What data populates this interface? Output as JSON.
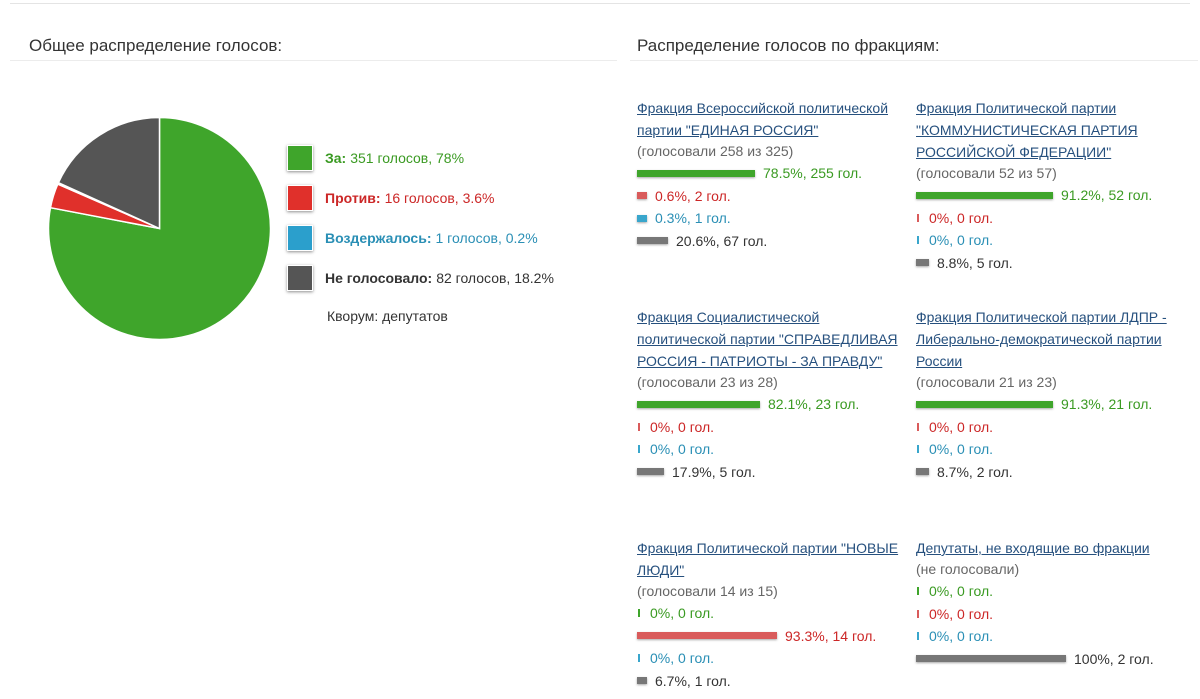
{
  "overall": {
    "title": "Общее распределение голосов:",
    "legend": [
      {
        "key": "for",
        "label": "За:",
        "text": "351 голосов, 78%",
        "color": "#3fa52b"
      },
      {
        "key": "against",
        "label": "Против:",
        "text": "16 голосов, 3.6%",
        "color": "#e0302b"
      },
      {
        "key": "abst",
        "label": "Воздержалось:",
        "text": "1 голосов, 0.2%",
        "color": "#2b9fcc"
      },
      {
        "key": "nv",
        "label": "Не голосовало:",
        "text": "82 голосов, 18.2%",
        "color": "#555555"
      }
    ],
    "quorum": "Кворум: депутатов"
  },
  "chart_data": {
    "type": "pie",
    "categories": [
      "За",
      "Против",
      "Воздержалось",
      "Не голосовало"
    ],
    "values": [
      351,
      16,
      1,
      82
    ],
    "percent": [
      78,
      3.6,
      0.2,
      18.2
    ],
    "colors": [
      "#3fa52b",
      "#e0302b",
      "#2b9fcc",
      "#555555"
    ],
    "title": "Общее распределение голосов:"
  },
  "factions_title": "Распределение голосов по фракциям:",
  "factions": [
    {
      "name": "Фракция Всероссийской политической партии \"ЕДИНАЯ РОССИЯ\"",
      "voted": "(голосовали 258 из 325)",
      "stats": [
        {
          "type": "for",
          "share": 0.785,
          "text": "78.5%, 255 гол."
        },
        {
          "type": "against",
          "share": 0.006,
          "text": "0.6%, 2 гол."
        },
        {
          "type": "abst",
          "share": 0.003,
          "text": "0.3%, 1 гол."
        },
        {
          "type": "nv",
          "share": 0.206,
          "text": "20.6%, 67 гол."
        }
      ]
    },
    {
      "name": "Фракция Политической партии \"КОММУНИСТИЧЕСКАЯ ПАРТИЯ РОССИЙСКОЙ ФЕДЕРАЦИИ\"",
      "voted": "(голосовали 52 из 57)",
      "stats": [
        {
          "type": "for",
          "share": 0.912,
          "text": "91.2%, 52 гол."
        },
        {
          "type": "against",
          "share": 0,
          "text": "0%, 0 гол."
        },
        {
          "type": "abst",
          "share": 0,
          "text": "0%, 0 гол."
        },
        {
          "type": "nv",
          "share": 0.088,
          "text": "8.8%, 5 гол."
        }
      ]
    },
    {
      "name": "Фракция Социалистической политической партии \"СПРАВЕДЛИВАЯ РОССИЯ - ПАТРИОТЫ - ЗА ПРАВДУ\"",
      "voted": "(голосовали 23 из 28)",
      "stats": [
        {
          "type": "for",
          "share": 0.821,
          "text": "82.1%, 23 гол."
        },
        {
          "type": "against",
          "share": 0,
          "text": "0%, 0 гол."
        },
        {
          "type": "abst",
          "share": 0,
          "text": "0%, 0 гол."
        },
        {
          "type": "nv",
          "share": 0.179,
          "text": "17.9%, 5 гол."
        }
      ]
    },
    {
      "name": "Фракция Политической партии ЛДПР - Либерально-демократической партии России",
      "voted": "(голосовали 21 из 23)",
      "stats": [
        {
          "type": "for",
          "share": 0.913,
          "text": "91.3%, 21 гол."
        },
        {
          "type": "against",
          "share": 0,
          "text": "0%, 0 гол."
        },
        {
          "type": "abst",
          "share": 0,
          "text": "0%, 0 гол."
        },
        {
          "type": "nv",
          "share": 0.087,
          "text": "8.7%, 2 гол."
        }
      ]
    },
    {
      "name": "Фракция Политической партии \"НОВЫЕ ЛЮДИ\"",
      "voted": "(голосовали 14 из 15)",
      "stats": [
        {
          "type": "for",
          "share": 0,
          "text": "0%, 0 гол."
        },
        {
          "type": "against",
          "share": 0.933,
          "text": "93.3%, 14 гол."
        },
        {
          "type": "abst",
          "share": 0,
          "text": "0%, 0 гол."
        },
        {
          "type": "nv",
          "share": 0.067,
          "text": "6.7%, 1 гол."
        }
      ]
    },
    {
      "name": "Депутаты, не входящие во фракции",
      "voted": "(не голосовали)",
      "stats": [
        {
          "type": "for",
          "share": 0,
          "text": "0%, 0 гол."
        },
        {
          "type": "against",
          "share": 0,
          "text": "0%, 0 гол."
        },
        {
          "type": "abst",
          "share": 0,
          "text": "0%, 0 гол."
        },
        {
          "type": "nv",
          "share": 1,
          "text": "100%, 2 гол."
        }
      ]
    }
  ]
}
